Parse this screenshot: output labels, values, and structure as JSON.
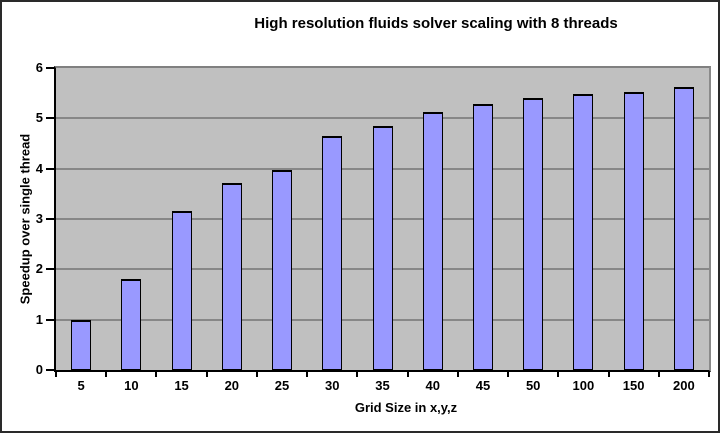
{
  "chart_data": {
    "type": "bar",
    "title": "High resolution fluids solver scaling with 8 threads",
    "xlabel": "Grid Size in x,y,z",
    "ylabel": "Speedup over single thread",
    "categories": [
      "5",
      "10",
      "15",
      "20",
      "25",
      "30",
      "35",
      "40",
      "45",
      "50",
      "100",
      "150",
      "200"
    ],
    "values": [
      1.0,
      1.8,
      3.16,
      3.71,
      3.98,
      4.64,
      4.85,
      5.12,
      5.29,
      5.4,
      5.48,
      5.53,
      5.62
    ],
    "ylim": [
      0,
      6
    ],
    "ytick_step": 1,
    "yticks": [
      0,
      1,
      2,
      3,
      4,
      5,
      6
    ],
    "grid": true,
    "legend": false,
    "colors": {
      "bar_fill": "#9999ff",
      "bar_border": "#000000",
      "plot_background": "#c0c0c0",
      "gridline": "#878787",
      "axis": "#000000",
      "text": "#000000",
      "chart_background": "#ffffff"
    }
  }
}
